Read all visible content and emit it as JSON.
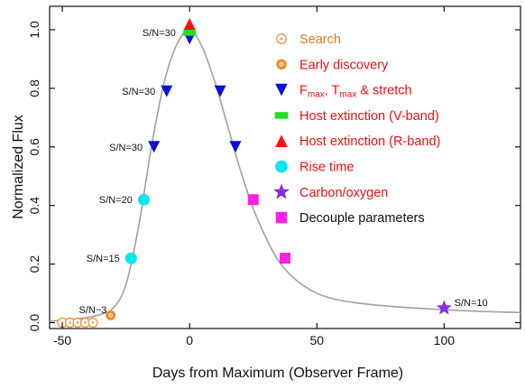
{
  "chart_data": {
    "type": "scatter",
    "title": "",
    "xlabel": "Days from Maximum (Observer Frame)",
    "ylabel": "Normalized Flux",
    "xlim": [
      -55,
      130
    ],
    "ylim": [
      -0.02,
      1.08
    ],
    "x_ticks": [
      -50,
      0,
      50,
      100
    ],
    "y_ticks": [
      0.0,
      0.2,
      0.4,
      0.6,
      0.8,
      1.0
    ],
    "grid": false,
    "legend_position": "top-right",
    "curve": {
      "x": [
        -55,
        -50,
        -45,
        -40,
        -35,
        -30,
        -25,
        -20,
        -15,
        -10,
        -5,
        0,
        5,
        10,
        15,
        20,
        25,
        30,
        35,
        40,
        45,
        50,
        55,
        60,
        70,
        80,
        90,
        100,
        110,
        120,
        130
      ],
      "y": [
        0.005,
        0.008,
        0.012,
        0.018,
        0.028,
        0.05,
        0.13,
        0.33,
        0.6,
        0.82,
        0.95,
        1.0,
        0.94,
        0.82,
        0.67,
        0.52,
        0.39,
        0.29,
        0.21,
        0.16,
        0.125,
        0.1,
        0.085,
        0.075,
        0.063,
        0.055,
        0.049,
        0.044,
        0.04,
        0.037,
        0.035
      ],
      "color": "#a0a0a0"
    },
    "series": [
      {
        "name": "Search",
        "marker": "circle-dot-open",
        "color": "#f28c28",
        "x": [
          -50,
          -47,
          -44,
          -41,
          -38
        ],
        "y": [
          0.0,
          0.0,
          0.0,
          0.0,
          0.0
        ]
      },
      {
        "name": "Early discovery",
        "marker": "circle-dot-filled",
        "color": "#f28c28",
        "x": [
          -31
        ],
        "y": [
          0.025
        ]
      },
      {
        "name_parts": [
          "F",
          "max",
          ", T",
          "max",
          " & stretch"
        ],
        "marker": "triangle-down",
        "color": "#0a10d8",
        "x": [
          -14,
          -9,
          0,
          12,
          18
        ],
        "y": [
          0.6,
          0.79,
          0.97,
          0.79,
          0.6
        ]
      },
      {
        "name": "Host extinction (V-band)",
        "marker": "rect",
        "color": "#22dd22",
        "x": [
          0
        ],
        "y": [
          0.99
        ]
      },
      {
        "name": "Host extinction (R-band)",
        "marker": "triangle-up",
        "color": "#ff1010",
        "x": [
          0
        ],
        "y": [
          1.02
        ]
      },
      {
        "name": "Rise time",
        "marker": "circle",
        "color": "#00e8ee",
        "x": [
          -23,
          -18
        ],
        "y": [
          0.22,
          0.42
        ]
      },
      {
        "name": "Carbon/oxygen",
        "marker": "star",
        "color": "#8a2be2",
        "x": [
          100
        ],
        "y": [
          0.05
        ]
      },
      {
        "name": "Decouple parameters",
        "marker": "square",
        "color": "#ff1fe0",
        "x": [
          25,
          37.5
        ],
        "y": [
          0.42,
          0.22
        ]
      }
    ],
    "legend_colors": [
      "#e07a20",
      "#ee1010",
      "#ee1010",
      "#ee1010",
      "#ee1010",
      "#ee1010",
      "#ee1010",
      "#111111"
    ],
    "annotations": [
      {
        "text": "S/N=30",
        "x": -12,
        "y": 0.99
      },
      {
        "text": "S/N=30",
        "x": -20,
        "y": 0.79
      },
      {
        "text": "S/N=30",
        "x": -25,
        "y": 0.6
      },
      {
        "text": "S/N=20",
        "x": -29,
        "y": 0.42
      },
      {
        "text": "S/N=15",
        "x": -34,
        "y": 0.22
      },
      {
        "text": "S/N~3",
        "x": -38,
        "y": 0.045
      },
      {
        "text": "S/N=10",
        "x": 104,
        "y": 0.07
      }
    ]
  }
}
